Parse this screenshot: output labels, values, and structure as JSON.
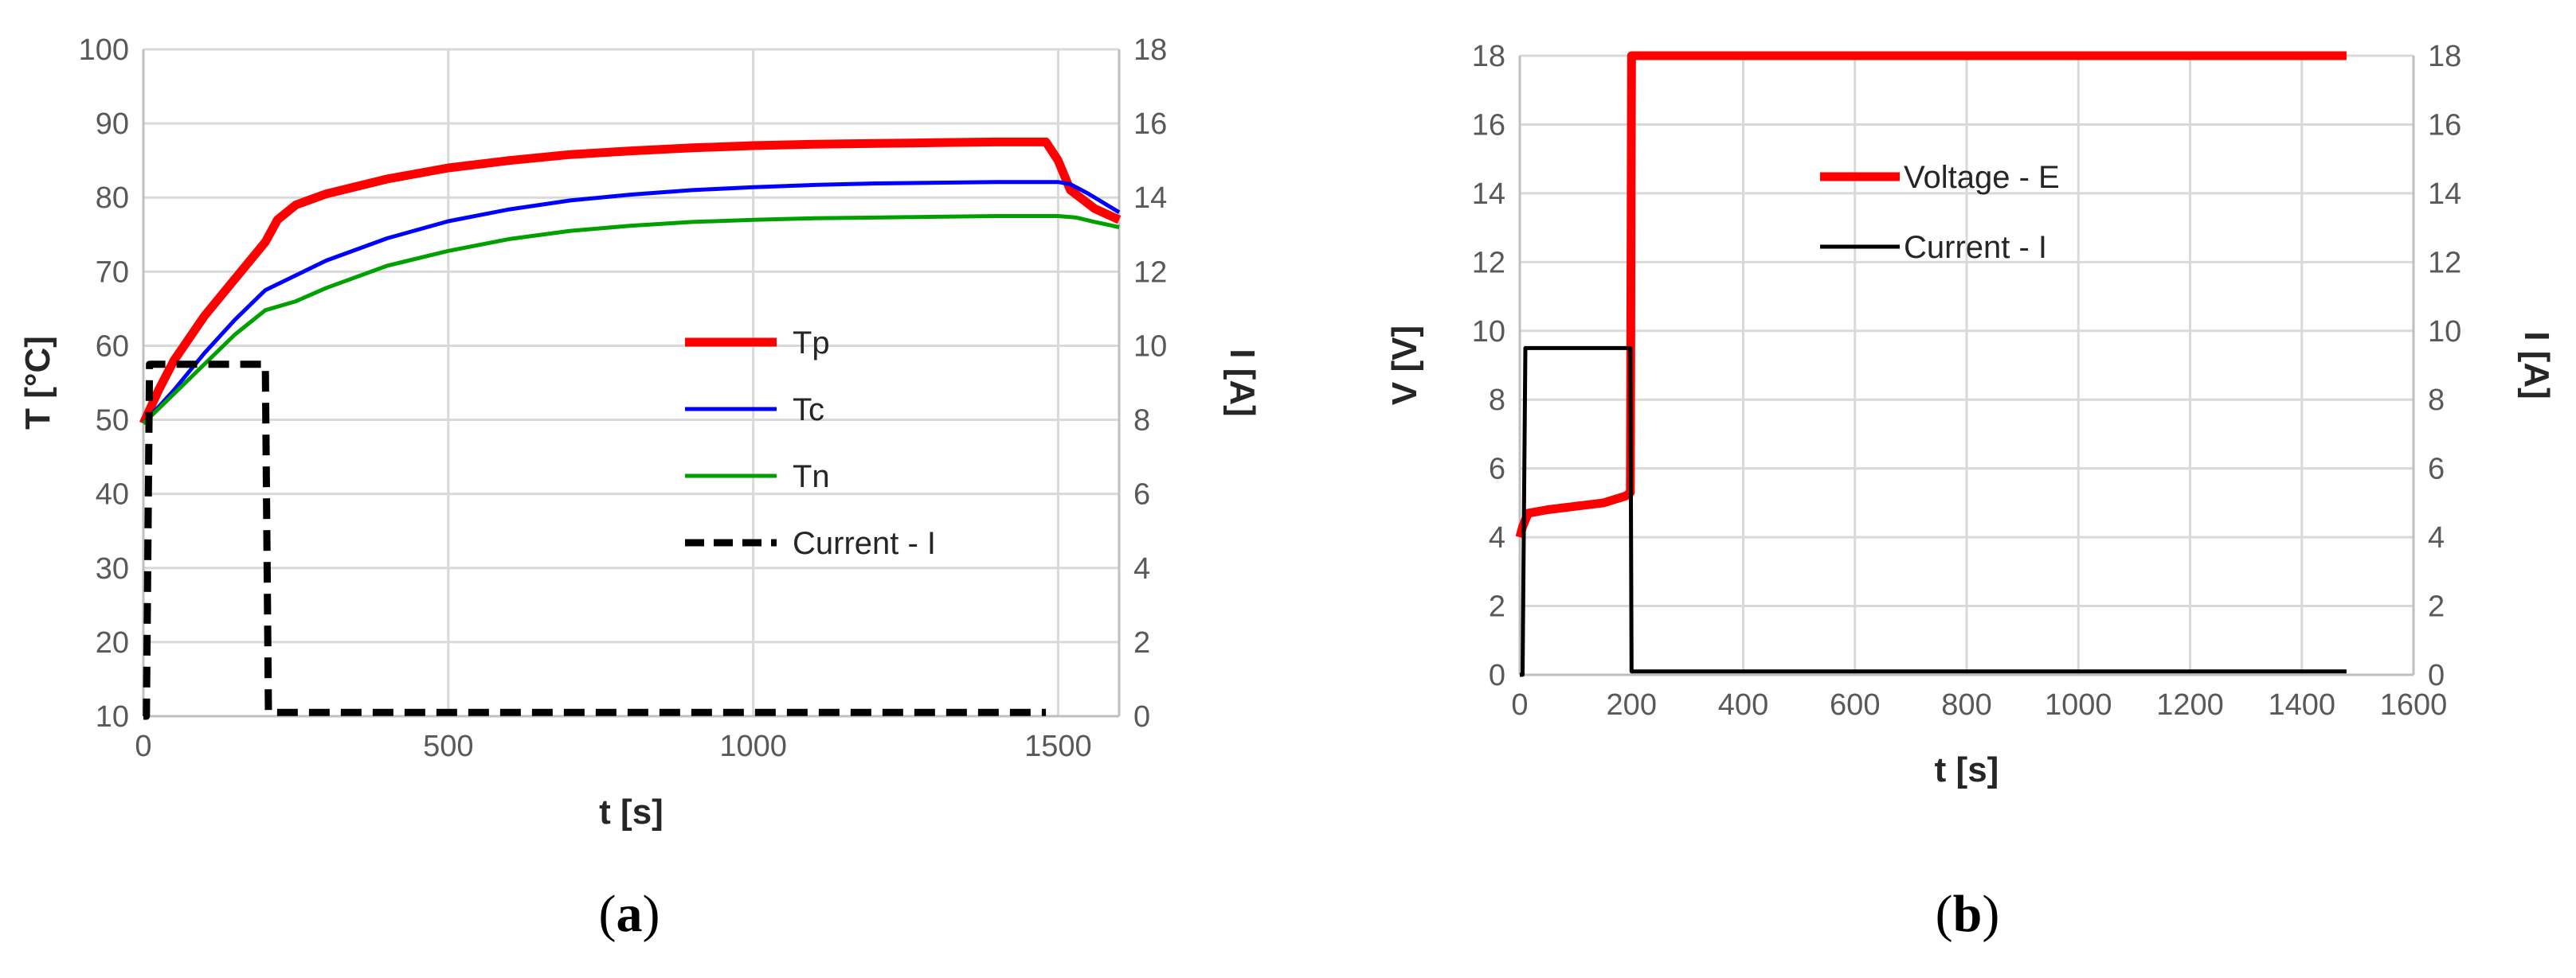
{
  "chart_data": [
    {
      "id": "a",
      "type": "line",
      "caption_open": "(",
      "caption_letter": "a",
      "caption_close": ")",
      "title": "",
      "xlabel": "t [s]",
      "ylabel": "T [°C]",
      "y2label": "I [A]",
      "xlim": [
        0,
        1600
      ],
      "ylim": [
        10,
        100
      ],
      "y2lim": [
        0,
        18
      ],
      "xticks": [
        0,
        500,
        1000,
        1500
      ],
      "yticks": [
        10,
        20,
        30,
        40,
        50,
        60,
        70,
        80,
        90,
        100
      ],
      "y2ticks": [
        0,
        2,
        4,
        6,
        8,
        10,
        12,
        14,
        16,
        18
      ],
      "grid": true,
      "legend_position": "center-right",
      "series": [
        {
          "name": "Tp",
          "axis": "left",
          "color": "#ff0000",
          "style": "solid-thick",
          "x": [
            0,
            25,
            50,
            100,
            150,
            200,
            220,
            250,
            300,
            400,
            500,
            600,
            700,
            800,
            900,
            1000,
            1100,
            1200,
            1300,
            1400,
            1480,
            1500,
            1520,
            1560,
            1600
          ],
          "y": [
            49.5,
            54,
            58,
            64,
            69,
            74,
            77,
            79,
            80.5,
            82.5,
            84,
            85,
            85.8,
            86.3,
            86.7,
            87,
            87.2,
            87.3,
            87.4,
            87.5,
            87.5,
            85,
            81,
            78.5,
            77
          ]
        },
        {
          "name": "Tc",
          "axis": "left",
          "color": "#0000ff",
          "style": "solid",
          "x": [
            0,
            50,
            100,
            150,
            200,
            250,
            300,
            400,
            500,
            600,
            700,
            800,
            900,
            1000,
            1100,
            1200,
            1300,
            1400,
            1500,
            1520,
            1550,
            1600
          ],
          "y": [
            49.5,
            54,
            59,
            63.5,
            67.5,
            69.5,
            71.5,
            74.5,
            76.8,
            78.4,
            79.6,
            80.4,
            81,
            81.4,
            81.7,
            81.9,
            82,
            82.1,
            82.1,
            81.8,
            80.5,
            78
          ]
        },
        {
          "name": "Tn",
          "axis": "left",
          "color": "#00a000",
          "style": "solid",
          "x": [
            0,
            50,
            100,
            150,
            200,
            250,
            300,
            400,
            500,
            600,
            700,
            800,
            900,
            1000,
            1100,
            1200,
            1300,
            1400,
            1500,
            1530,
            1560,
            1600
          ],
          "y": [
            49.5,
            53.5,
            57.5,
            61.5,
            64.8,
            66,
            67.8,
            70.8,
            72.8,
            74.4,
            75.5,
            76.2,
            76.7,
            77,
            77.2,
            77.3,
            77.4,
            77.5,
            77.5,
            77.3,
            76.7,
            76
          ]
        },
        {
          "name": "Current - I",
          "axis": "right",
          "color": "#000000",
          "style": "dashed",
          "x": [
            0,
            5,
            10,
            195,
            200,
            205,
            1480
          ],
          "y": [
            0,
            0,
            9.5,
            9.5,
            9.5,
            0.1,
            0.1
          ]
        }
      ]
    },
    {
      "id": "b",
      "type": "line",
      "caption_open": "(",
      "caption_letter": "b",
      "caption_close": ")",
      "title": "",
      "xlabel": "t [s]",
      "ylabel": "V [V]",
      "y2label": "I [A]",
      "xlim": [
        0,
        1600
      ],
      "ylim": [
        0,
        18
      ],
      "y2lim": [
        0,
        18
      ],
      "xticks": [
        0,
        200,
        400,
        600,
        800,
        1000,
        1200,
        1400,
        1600
      ],
      "yticks": [
        0,
        2,
        4,
        6,
        8,
        10,
        12,
        14,
        16,
        18
      ],
      "y2ticks": [
        0,
        2,
        4,
        6,
        8,
        10,
        12,
        14,
        16,
        18
      ],
      "grid": true,
      "legend_position": "upper-center",
      "series": [
        {
          "name": "Voltage - E",
          "axis": "left",
          "color": "#ff0000",
          "style": "solid-thick",
          "x": [
            0,
            5,
            15,
            50,
            100,
            150,
            190,
            198,
            200,
            1480
          ],
          "y": [
            4.0,
            4.3,
            4.7,
            4.8,
            4.9,
            5.0,
            5.2,
            5.3,
            18,
            18
          ]
        },
        {
          "name": "Current - I",
          "axis": "right",
          "color": "#000000",
          "style": "solid",
          "x": [
            0,
            5,
            10,
            195,
            198,
            200,
            1480
          ],
          "y": [
            0,
            0,
            9.5,
            9.5,
            9.5,
            0.1,
            0.1
          ]
        }
      ]
    }
  ]
}
